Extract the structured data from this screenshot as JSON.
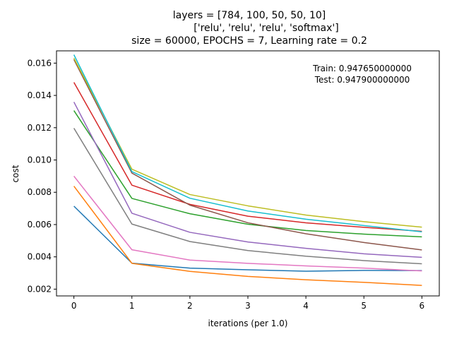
{
  "chart_data": {
    "type": "line",
    "title": [
      "layers = [784, 100, 50, 50, 10]",
      "['relu', 'relu', 'relu', 'softmax']",
      "size = 60000, EPOCHS = 7, Learning rate = 0.2"
    ],
    "xlabel": "iterations (per 1.0)",
    "ylabel": "cost",
    "xlim": [
      -0.3,
      6.3
    ],
    "ylim": [
      0.00158,
      0.01676
    ],
    "xticks": [
      0,
      1,
      2,
      3,
      4,
      5,
      6
    ],
    "yticks": [
      0.002,
      0.004,
      0.006,
      0.008,
      0.01,
      0.012,
      0.014,
      0.016
    ],
    "ytick_labels": [
      "0.002",
      "0.004",
      "0.006",
      "0.008",
      "0.010",
      "0.012",
      "0.014",
      "0.016"
    ],
    "grid": false,
    "legend": "none",
    "annotations": [
      "Train: 0.947650000000",
      "Test: 0.947900000000"
    ],
    "x": [
      0,
      1,
      2,
      3,
      4,
      5,
      6
    ],
    "series": [
      {
        "color": "#1f77b4",
        "values": [
          0.00714,
          0.00361,
          0.0033,
          0.0032,
          0.00311,
          0.00316,
          0.00315
        ]
      },
      {
        "color": "#ff7f0e",
        "values": [
          0.00838,
          0.0036,
          0.0031,
          0.00279,
          0.00258,
          0.00242,
          0.00223
        ]
      },
      {
        "color": "#2ca02c",
        "values": [
          0.01306,
          0.00762,
          0.00667,
          0.00602,
          0.00563,
          0.00541,
          0.00524
        ]
      },
      {
        "color": "#d62728",
        "values": [
          0.01481,
          0.00844,
          0.00725,
          0.00652,
          0.00611,
          0.00583,
          0.00558
        ]
      },
      {
        "color": "#9467bd",
        "values": [
          0.01359,
          0.0067,
          0.00552,
          0.00492,
          0.00453,
          0.00419,
          0.00397
        ]
      },
      {
        "color": "#8c564b",
        "values": [
          0.01622,
          0.00919,
          0.0072,
          0.00611,
          0.00543,
          0.00489,
          0.00443
        ]
      },
      {
        "color": "#e377c2",
        "values": [
          0.009,
          0.00444,
          0.0038,
          0.0036,
          0.00344,
          0.0033,
          0.00313
        ]
      },
      {
        "color": "#7f7f7f",
        "values": [
          0.01197,
          0.00603,
          0.00495,
          0.00439,
          0.00404,
          0.00377,
          0.00357
        ]
      },
      {
        "color": "#bcbd22",
        "values": [
          0.01631,
          0.00943,
          0.00786,
          0.00716,
          0.00659,
          0.00618,
          0.00584
        ]
      },
      {
        "color": "#17becf",
        "values": [
          0.01652,
          0.00928,
          0.00763,
          0.00684,
          0.00633,
          0.00594,
          0.00555
        ]
      }
    ]
  }
}
